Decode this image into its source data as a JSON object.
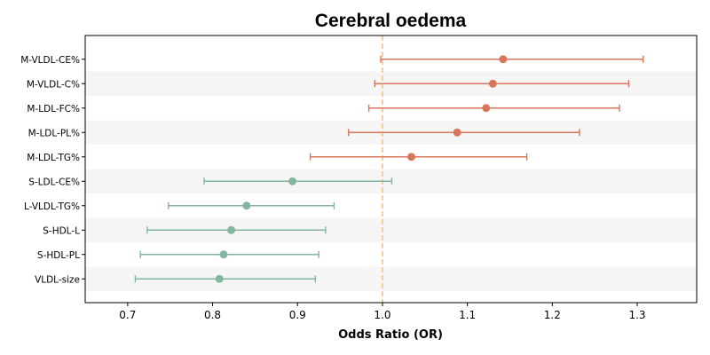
{
  "chart_data": {
    "type": "forest",
    "title": "Cerebral oedema",
    "xlabel": "Odds Ratio (OR)",
    "ylabel": "",
    "xlim": [
      0.65,
      1.37
    ],
    "xticks": [
      "0.7",
      "0.8",
      "0.9",
      "1.0",
      "1.1",
      "1.2",
      "1.3"
    ],
    "reference_line": 1.0,
    "grid": false,
    "alternating_row_shading": true,
    "colors": {
      "positive": "#d9765a",
      "negative": "#83b59f",
      "reference": "#f0c48a",
      "row_shade": "#f5f5f5"
    },
    "rows": [
      {
        "label": "M-VLDL-CE%",
        "or": 1.142,
        "lower": 0.998,
        "upper": 1.307
      },
      {
        "label": "M-VLDL-C%",
        "or": 1.13,
        "lower": 0.991,
        "upper": 1.29
      },
      {
        "label": "M-LDL-FC%",
        "or": 1.122,
        "lower": 0.984,
        "upper": 1.279
      },
      {
        "label": "M-LDL-PL%",
        "or": 1.088,
        "lower": 0.96,
        "upper": 1.232
      },
      {
        "label": "M-LDL-TG%",
        "or": 1.034,
        "lower": 0.915,
        "upper": 1.17
      },
      {
        "label": "S-LDL-CE%",
        "or": 0.894,
        "lower": 0.79,
        "upper": 1.011
      },
      {
        "label": "L-VLDL-TG%",
        "or": 0.84,
        "lower": 0.748,
        "upper": 0.943
      },
      {
        "label": "S-HDL-L",
        "or": 0.822,
        "lower": 0.723,
        "upper": 0.933
      },
      {
        "label": "S-HDL-PL",
        "or": 0.813,
        "lower": 0.715,
        "upper": 0.925
      },
      {
        "label": "VLDL-size",
        "or": 0.808,
        "lower": 0.709,
        "upper": 0.921
      }
    ]
  }
}
